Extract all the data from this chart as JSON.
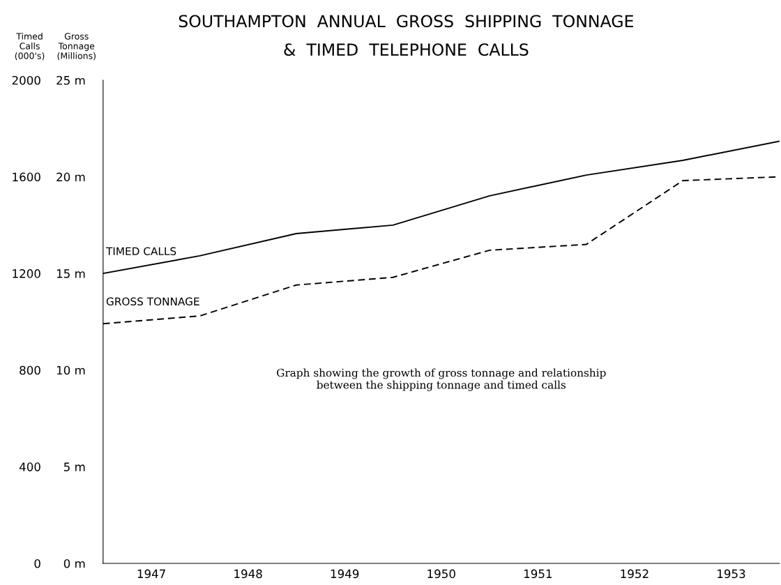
{
  "chart_data": {
    "type": "line",
    "title": "SOUTHAMPTON  ANNUAL  GROSS  SHIPPING  TONNAGE\n&  TIMED  TELEPHONE  CALLS",
    "ylabel": "Timed\nCalls\n(000's)",
    "y2label": "Gross\nTonnage\n(Millions)",
    "x": [
      1947,
      1948,
      1949,
      1950,
      1951,
      1952,
      1953,
      1954
    ],
    "series": [
      {
        "name": "TIMED CALLS",
        "color": "#000000",
        "line_style": "solid",
        "values": [
          1200,
          1273,
          1365,
          1400,
          1521,
          1607,
          1668,
          1747
        ]
      },
      {
        "name": "GROSS TONNAGE",
        "color": "#000000",
        "line_style": "dashed",
        "axis": "y2",
        "values": [
          12.4,
          12.8,
          14.4,
          14.8,
          16.2,
          16.5,
          19.8,
          20.0
        ]
      }
    ],
    "xlim": [
      1947,
      1954
    ],
    "xticks": [
      {
        "value": 1947.5,
        "label": "1947"
      },
      {
        "value": 1948.5,
        "label": "1948"
      },
      {
        "value": 1949.5,
        "label": "1949"
      },
      {
        "value": 1950.5,
        "label": "1950"
      },
      {
        "value": 1951.5,
        "label": "1951"
      },
      {
        "value": 1952.5,
        "label": "1952"
      },
      {
        "value": 1953.5,
        "label": "1953"
      }
    ],
    "ylim": [
      0,
      2000
    ],
    "yticks": [
      0,
      400,
      800,
      1200,
      1600,
      2000
    ],
    "y2lim": [
      0,
      25
    ],
    "y2ticks": [
      {
        "value": 0,
        "label": "0 m"
      },
      {
        "value": 5,
        "label": "5 m"
      },
      {
        "value": 10,
        "label": "10 m"
      },
      {
        "value": 15,
        "label": "15 m"
      },
      {
        "value": 20,
        "label": "20 m"
      },
      {
        "value": 25,
        "label": "25 m"
      }
    ],
    "annotations": [
      "Graph showing the growth of gross tonnage and relationship\nbetween the shipping tonnage and timed calls"
    ],
    "grid": false,
    "legend": false,
    "marker": "none"
  }
}
